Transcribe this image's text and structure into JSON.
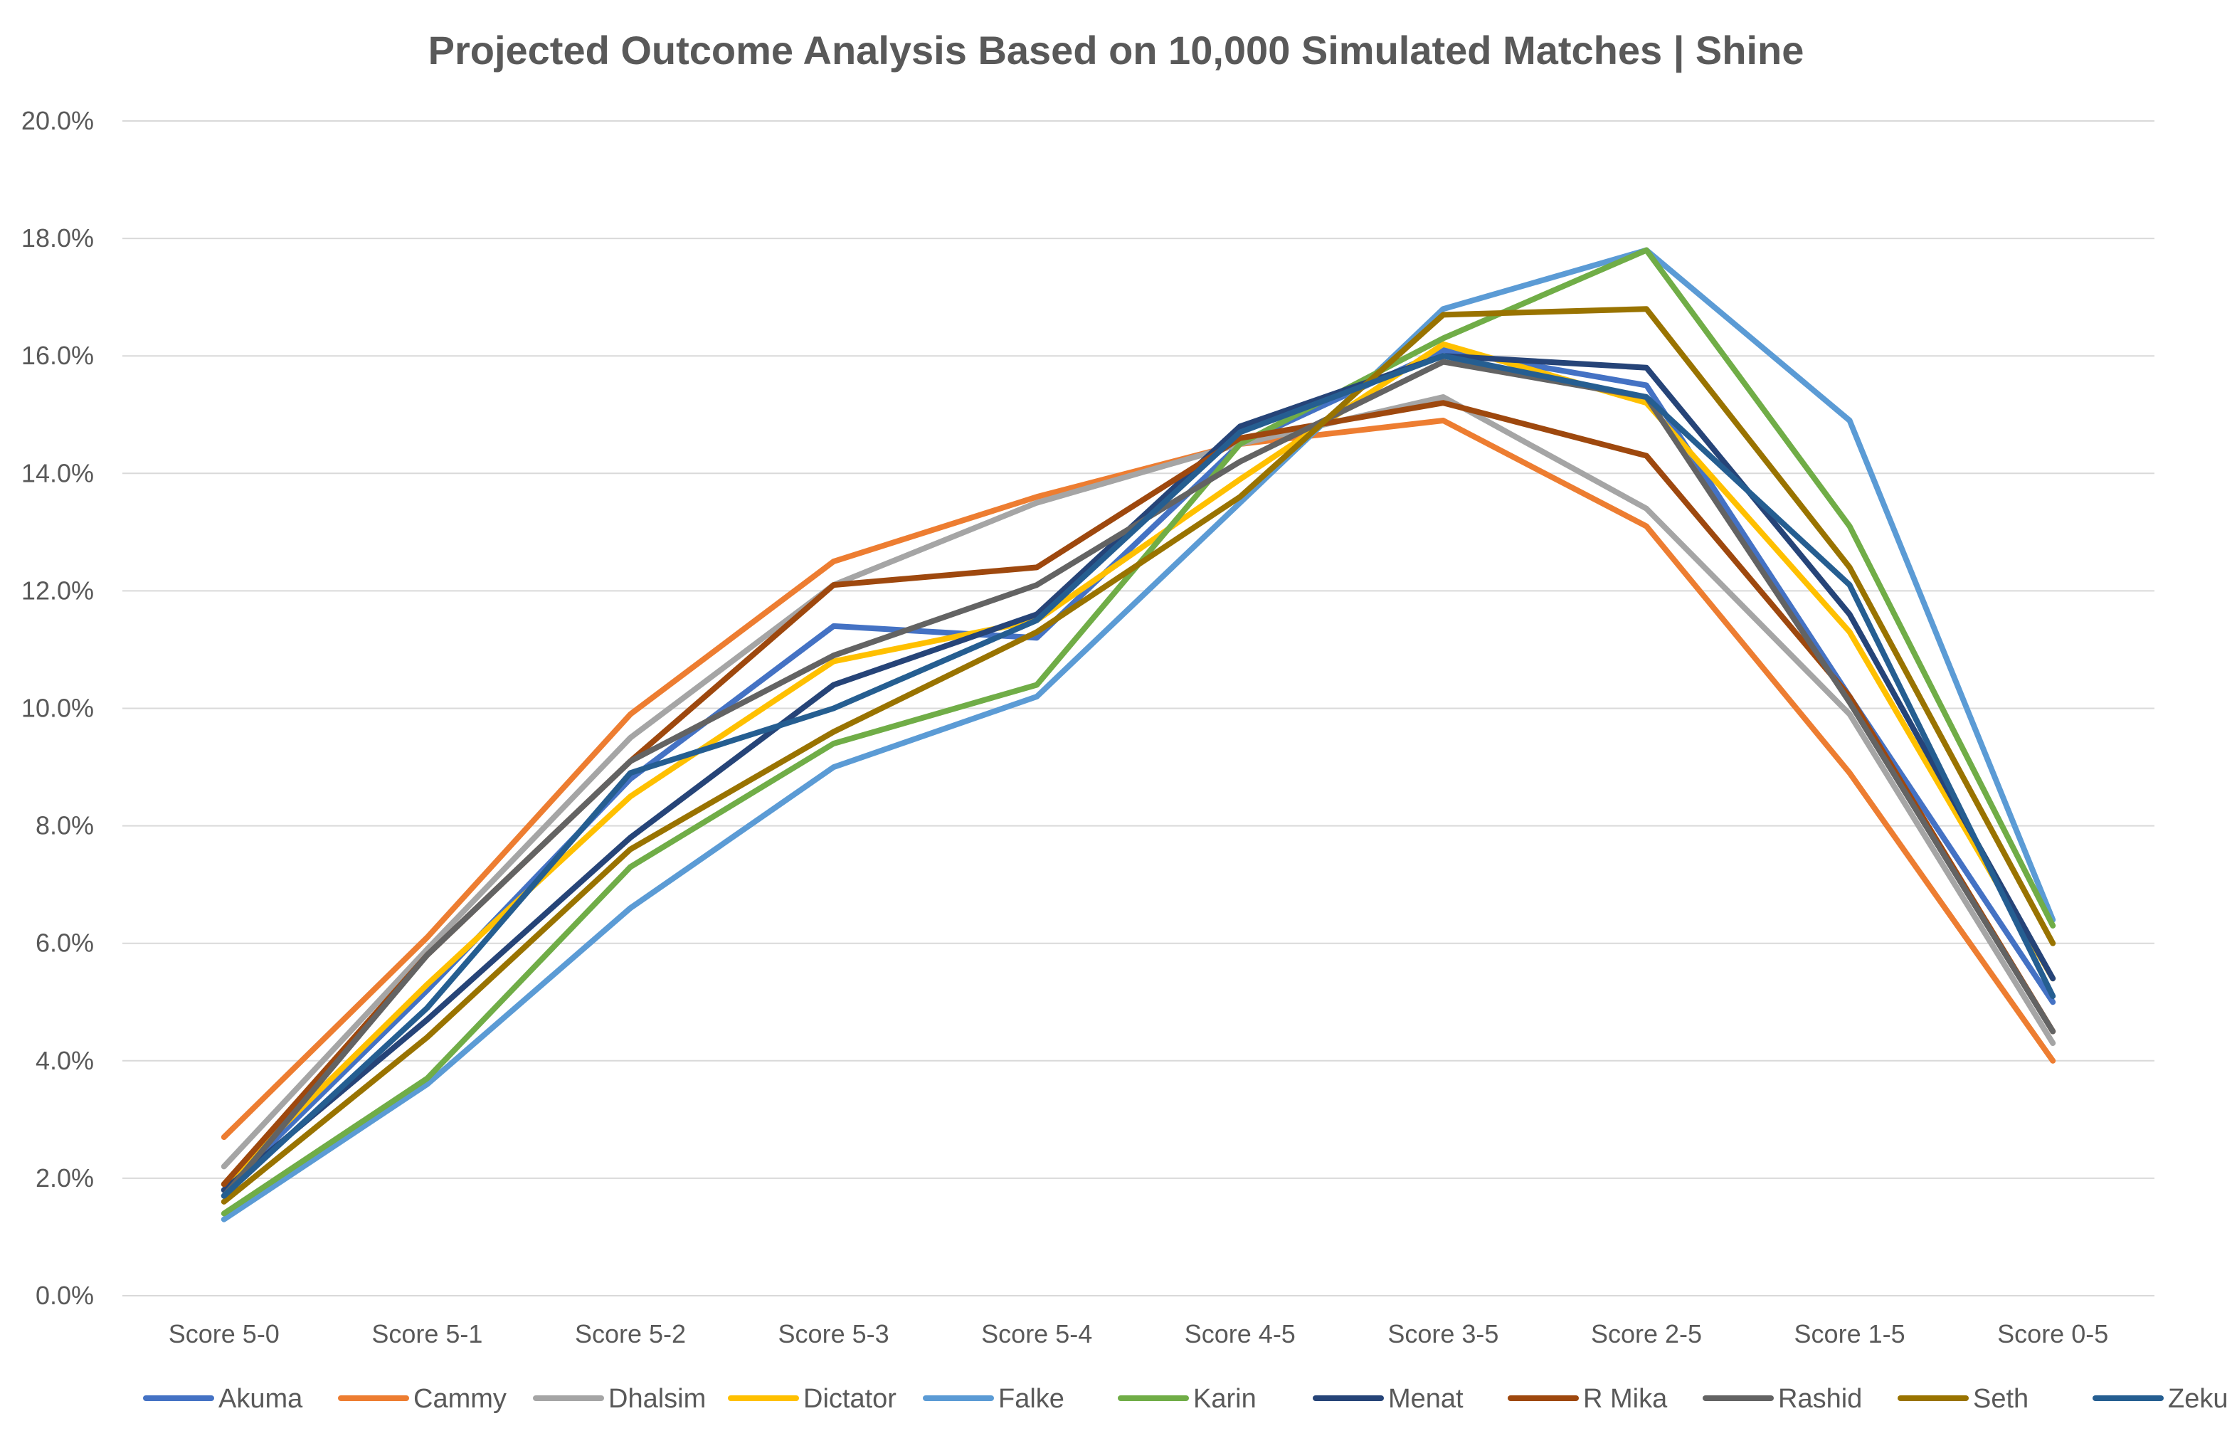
{
  "chart_data": {
    "type": "line",
    "title": "Projected Outcome Analysis Based on 10,000 Simulated Matches | Shine",
    "xlabel": "",
    "ylabel": "",
    "categories": [
      "Score 5-0",
      "Score 5-1",
      "Score 5-2",
      "Score 5-3",
      "Score 5-4",
      "Score 4-5",
      "Score 3-5",
      "Score 2-5",
      "Score 1-5",
      "Score 0-5"
    ],
    "ylim": [
      0,
      0.2
    ],
    "yticks": [
      "0.0%",
      "2.0%",
      "4.0%",
      "6.0%",
      "8.0%",
      "10.0%",
      "12.0%",
      "14.0%",
      "16.0%",
      "18.0%",
      "20.0%"
    ],
    "grid": true,
    "legend": "bottom",
    "series": [
      {
        "name": "Akuma",
        "color": "#4472C4",
        "values": [
          0.018,
          0.052,
          0.088,
          0.114,
          0.112,
          0.145,
          0.161,
          0.155,
          0.102,
          0.05
        ]
      },
      {
        "name": "Cammy",
        "color": "#ED7D31",
        "values": [
          0.027,
          0.061,
          0.099,
          0.125,
          0.136,
          0.145,
          0.149,
          0.131,
          0.089,
          0.04
        ]
      },
      {
        "name": "Dhalsim",
        "color": "#A5A5A5",
        "values": [
          0.022,
          0.059,
          0.095,
          0.121,
          0.135,
          0.145,
          0.153,
          0.134,
          0.099,
          0.043
        ]
      },
      {
        "name": "Dictator",
        "color": "#FFC000",
        "values": [
          0.019,
          0.053,
          0.085,
          0.108,
          0.115,
          0.139,
          0.162,
          0.152,
          0.113,
          0.054
        ]
      },
      {
        "name": "Falke",
        "color": "#5B9BD5",
        "values": [
          0.013,
          0.036,
          0.066,
          0.09,
          0.102,
          0.135,
          0.168,
          0.178,
          0.149,
          0.064
        ]
      },
      {
        "name": "Karin",
        "color": "#70AD47",
        "values": [
          0.014,
          0.037,
          0.073,
          0.094,
          0.104,
          0.145,
          0.163,
          0.178,
          0.131,
          0.063
        ]
      },
      {
        "name": "Menat",
        "color": "#264478",
        "values": [
          0.018,
          0.047,
          0.078,
          0.104,
          0.116,
          0.148,
          0.16,
          0.158,
          0.116,
          0.054
        ]
      },
      {
        "name": "R Mika",
        "color": "#9E480E",
        "values": [
          0.019,
          0.058,
          0.091,
          0.121,
          0.124,
          0.146,
          0.152,
          0.143,
          0.102,
          0.045
        ]
      },
      {
        "name": "Rashid",
        "color": "#636363",
        "values": [
          0.017,
          0.058,
          0.091,
          0.109,
          0.121,
          0.142,
          0.159,
          0.153,
          0.101,
          0.045
        ]
      },
      {
        "name": "Seth",
        "color": "#997300",
        "values": [
          0.016,
          0.044,
          0.076,
          0.096,
          0.113,
          0.136,
          0.167,
          0.168,
          0.124,
          0.06
        ]
      },
      {
        "name": "Zeku",
        "color": "#255E91",
        "values": [
          0.017,
          0.049,
          0.089,
          0.1,
          0.115,
          0.147,
          0.16,
          0.153,
          0.121,
          0.051
        ]
      }
    ]
  }
}
